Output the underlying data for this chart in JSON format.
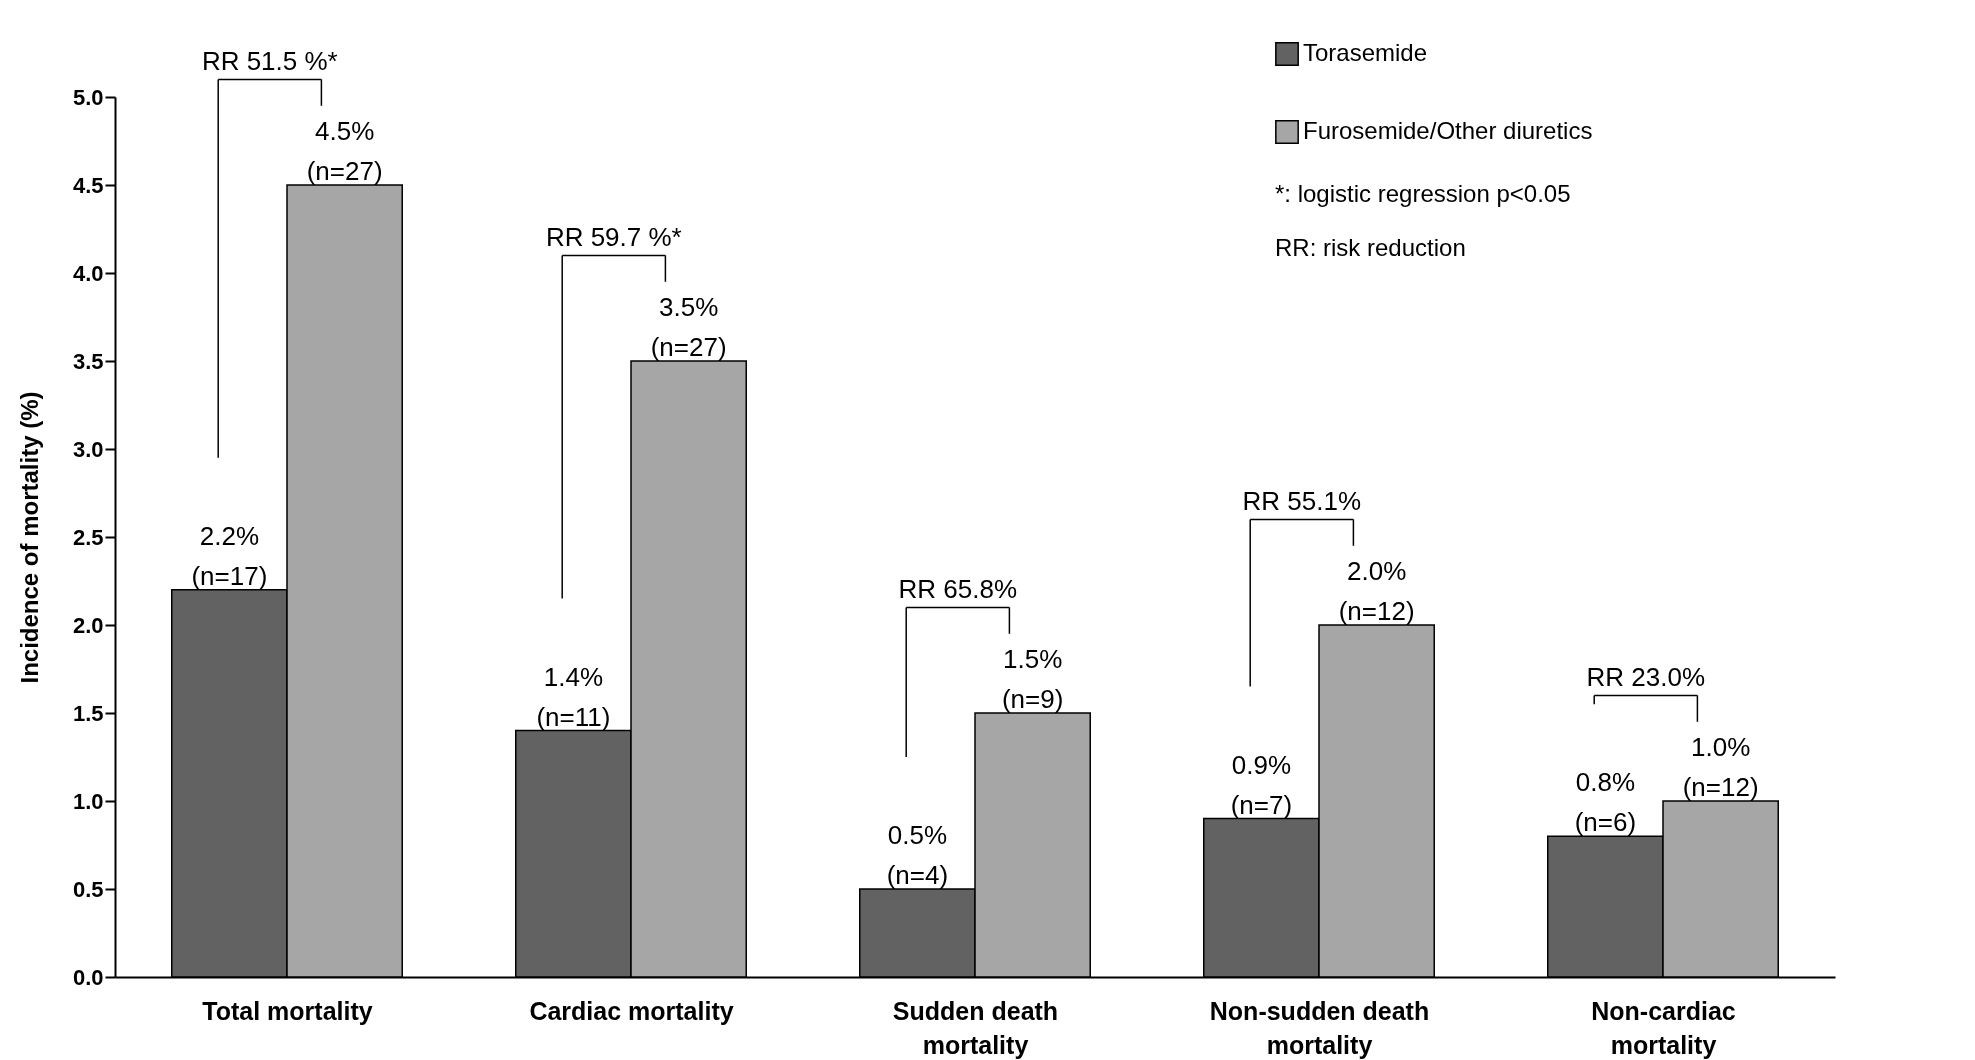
{
  "chart_data": {
    "type": "bar",
    "ylabel": "Incidence of mortality  (%)",
    "categories": [
      "Total mortality",
      "Cardiac mortality",
      "Sudden death\nmortality",
      "Non-sudden death\nmortality",
      "Non-cardiac\nmortality"
    ],
    "series": [
      {
        "name": "Torasemide",
        "color": "#626262",
        "values": [
          2.2,
          1.4,
          0.5,
          0.9,
          0.8
        ],
        "value_labels": [
          "2.2%\n(n=17)",
          "1.4%\n(n=11)",
          "0.5%\n(n=4)",
          "0.9%\n(n=7)",
          "0.8%\n(n=6)"
        ]
      },
      {
        "name": "Furosemide/Other diuretics",
        "color": "#a6a6a6",
        "values": [
          4.5,
          3.5,
          1.5,
          2.0,
          1.0
        ],
        "value_labels": [
          "4.5%\n(n=27)",
          "3.5%\n(n=27)",
          "1.5%\n(n=9)",
          "2.0%\n(n=12)",
          "1.0%\n(n=12)"
        ]
      }
    ],
    "ylim": [
      0,
      5
    ],
    "yticks": [
      {
        "value": 0,
        "label": "0.0"
      },
      0.5,
      {
        "value": 1,
        "label": "1.0"
      },
      1.5,
      {
        "value": 2,
        "label": "2.0"
      },
      2.5,
      {
        "value": 3,
        "label": "3.0"
      },
      3.5,
      {
        "value": 4,
        "label": "4.0"
      },
      4.5,
      {
        "value": 5,
        "label": "5.0"
      }
    ],
    "grid": false,
    "legend": "top right",
    "annotations": [
      "RR 51.5 %*",
      "RR 59.7 %*",
      "RR 65.8%",
      "RR 55.1%",
      "RR 23.0%",
      "*: logistic regression p<0.05",
      "RR: risk reduction"
    ]
  }
}
